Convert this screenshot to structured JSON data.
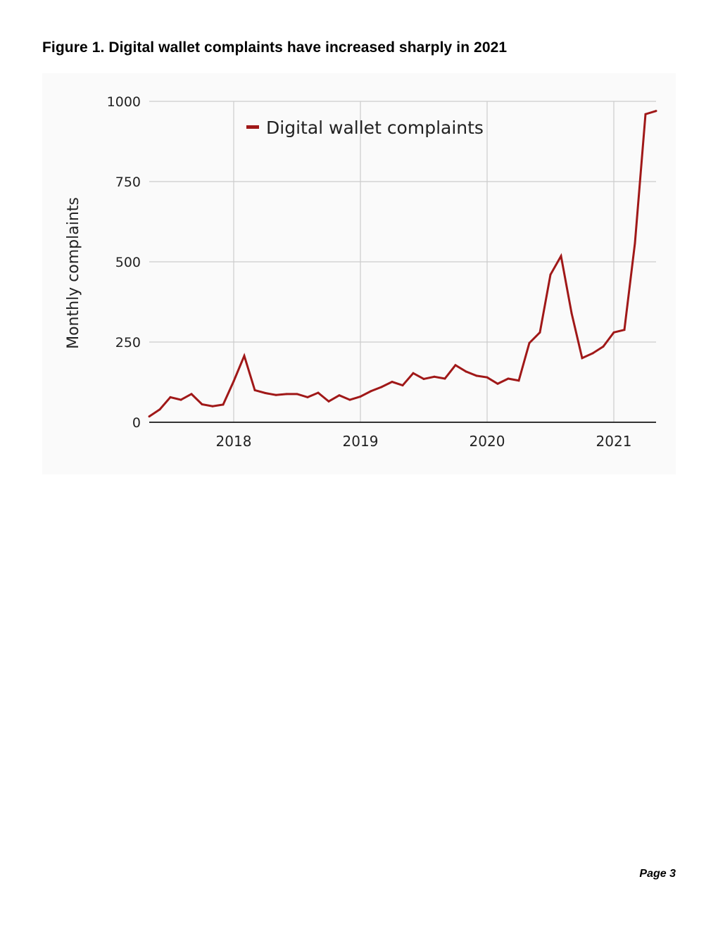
{
  "figure": {
    "title": "Figure 1. Digital wallet complaints have increased sharply in 2021"
  },
  "page": {
    "number_label": "Page 3"
  },
  "colors": {
    "series": "#a01818",
    "grid": "#cccccc",
    "axis": "#333333",
    "background": "#fafafa"
  },
  "chart_data": {
    "type": "line",
    "title": "",
    "xlabel": "",
    "ylabel": "Monthly complaints",
    "ylim": [
      0,
      1000
    ],
    "yticks": [
      0,
      250,
      500,
      750,
      1000
    ],
    "xticks": [
      {
        "label": "2018",
        "value": "2018-01"
      },
      {
        "label": "2019",
        "value": "2019-01"
      },
      {
        "label": "2020",
        "value": "2020-01"
      },
      {
        "label": "2021",
        "value": "2021-01"
      }
    ],
    "x_range": [
      "2017-05",
      "2021-05"
    ],
    "grid": true,
    "legend": "top-left",
    "series": [
      {
        "name": "Digital wallet complaints",
        "color": "#a01818",
        "points": [
          [
            "2017-05",
            18
          ],
          [
            "2017-06",
            40
          ],
          [
            "2017-07",
            78
          ],
          [
            "2017-08",
            70
          ],
          [
            "2017-09",
            88
          ],
          [
            "2017-10",
            56
          ],
          [
            "2017-11",
            50
          ],
          [
            "2017-12",
            55
          ],
          [
            "2018-01",
            128
          ],
          [
            "2018-02",
            207
          ],
          [
            "2018-03",
            100
          ],
          [
            "2018-04",
            91
          ],
          [
            "2018-05",
            85
          ],
          [
            "2018-06",
            88
          ],
          [
            "2018-07",
            88
          ],
          [
            "2018-08",
            78
          ],
          [
            "2018-09",
            92
          ],
          [
            "2018-10",
            65
          ],
          [
            "2018-11",
            84
          ],
          [
            "2018-12",
            70
          ],
          [
            "2019-01",
            80
          ],
          [
            "2019-02",
            97
          ],
          [
            "2019-03",
            110
          ],
          [
            "2019-04",
            126
          ],
          [
            "2019-05",
            115
          ],
          [
            "2019-06",
            153
          ],
          [
            "2019-07",
            135
          ],
          [
            "2019-08",
            142
          ],
          [
            "2019-09",
            136
          ],
          [
            "2019-10",
            178
          ],
          [
            "2019-11",
            158
          ],
          [
            "2019-12",
            145
          ],
          [
            "2020-01",
            140
          ],
          [
            "2020-02",
            120
          ],
          [
            "2020-03",
            136
          ],
          [
            "2020-04",
            130
          ],
          [
            "2020-05",
            247
          ],
          [
            "2020-06",
            280
          ],
          [
            "2020-07",
            460
          ],
          [
            "2020-08",
            518
          ],
          [
            "2020-09",
            340
          ],
          [
            "2020-10",
            200
          ],
          [
            "2020-11",
            215
          ],
          [
            "2020-12",
            236
          ],
          [
            "2021-01",
            280
          ],
          [
            "2021-02",
            288
          ],
          [
            "2021-03",
            558
          ],
          [
            "2021-04",
            960
          ],
          [
            "2021-05",
            970
          ]
        ]
      }
    ]
  }
}
